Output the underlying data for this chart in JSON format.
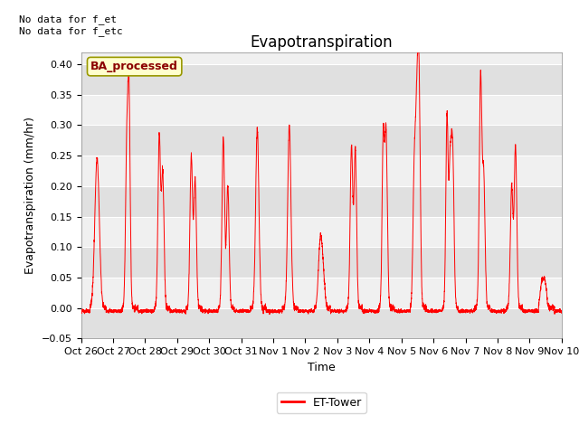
{
  "title": "Evapotranspiration",
  "ylabel": "Evapotranspiration (mm/hr)",
  "xlabel": "Time",
  "top_left_text": "No data for f_et\nNo data for f_etc",
  "legend_box_label": "BA_processed",
  "legend_line_label": "ET-Tower",
  "ylim": [
    -0.05,
    0.42
  ],
  "yticks": [
    -0.05,
    0.0,
    0.05,
    0.1,
    0.15,
    0.2,
    0.25,
    0.3,
    0.35,
    0.4
  ],
  "line_color": "red",
  "legend_box_facecolor": "#ffffcc",
  "legend_box_edgecolor": "#999900",
  "plot_bg_color": "#f0f0f0",
  "stripe_color": "#e0e0e0",
  "xtick_labels": [
    "Oct 26",
    "Oct 27",
    "Oct 28",
    "Oct 29",
    "Oct 30",
    "Oct 31",
    "Nov 1",
    "Nov 2",
    "Nov 3",
    "Nov 4",
    "Nov 5",
    "Nov 6",
    "Nov 7",
    "Nov 8",
    "Nov 9",
    "Nov 10"
  ],
  "n_days": 15,
  "title_fontsize": 12,
  "label_fontsize": 9,
  "tick_fontsize": 8,
  "note_fontsize": 8
}
